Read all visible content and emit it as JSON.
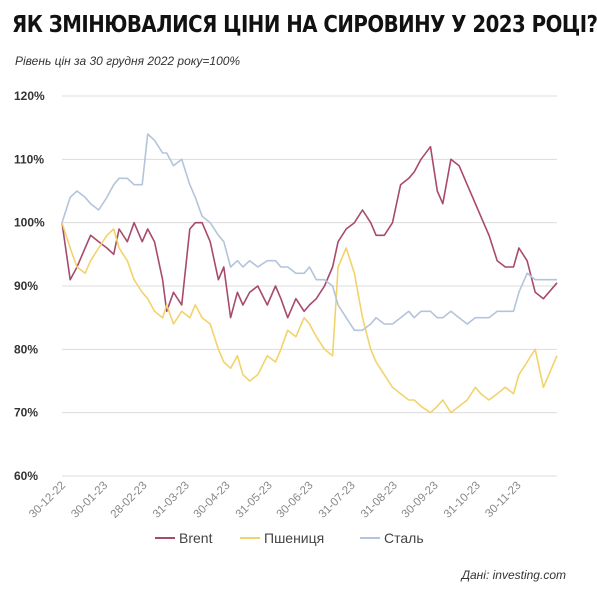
{
  "title": "ЯК ЗМІНЮВАЛИСЯ ЦІНИ НА СИРОВИНУ У 2023 РОЦІ?",
  "subtitle": "Рівень цін за 30 грудня 2022 року=100%",
  "source": "Дані: investing.com",
  "chart_data": {
    "type": "line",
    "ylim": [
      60,
      120
    ],
    "yticks": [
      60,
      70,
      80,
      90,
      100,
      110,
      120
    ],
    "ytick_labels": [
      "60%",
      "70%",
      "80%",
      "90%",
      "100%",
      "110%",
      "120%"
    ],
    "xlim": [
      "2022-12-30",
      "2023-12-29"
    ],
    "xticks": [
      "2022-12-30",
      "2023-01-30",
      "2023-02-28",
      "2023-03-31",
      "2023-04-30",
      "2023-05-31",
      "2023-06-30",
      "2023-07-31",
      "2023-08-31",
      "2023-09-30",
      "2023-10-31",
      "2023-11-30"
    ],
    "xtick_labels": [
      "30-12-22",
      "30-01-23",
      "28-02-23",
      "31-03-23",
      "30-04-23",
      "31-05-23",
      "30-06-23",
      "31-07-23",
      "31-08-23",
      "30-09-23",
      "31-10-23",
      "30-11-23"
    ],
    "grid": "horizontal",
    "legend": "bottom",
    "series": [
      {
        "name": "Brent",
        "color": "#a84a6e",
        "x": [
          "2022-12-30",
          "2023-01-05",
          "2023-01-10",
          "2023-01-16",
          "2023-01-20",
          "2023-01-26",
          "2023-02-01",
          "2023-02-06",
          "2023-02-10",
          "2023-02-16",
          "2023-02-21",
          "2023-02-27",
          "2023-03-03",
          "2023-03-08",
          "2023-03-14",
          "2023-03-17",
          "2023-03-22",
          "2023-03-28",
          "2023-04-03",
          "2023-04-07",
          "2023-04-12",
          "2023-04-18",
          "2023-04-24",
          "2023-04-28",
          "2023-05-03",
          "2023-05-08",
          "2023-05-12",
          "2023-05-17",
          "2023-05-23",
          "2023-05-30",
          "2023-06-05",
          "2023-06-09",
          "2023-06-14",
          "2023-06-20",
          "2023-06-26",
          "2023-06-30",
          "2023-07-05",
          "2023-07-11",
          "2023-07-17",
          "2023-07-21",
          "2023-07-27",
          "2023-08-02",
          "2023-08-08",
          "2023-08-14",
          "2023-08-18",
          "2023-08-24",
          "2023-08-30",
          "2023-09-05",
          "2023-09-11",
          "2023-09-15",
          "2023-09-20",
          "2023-09-27",
          "2023-10-02",
          "2023-10-06",
          "2023-10-12",
          "2023-10-18",
          "2023-10-24",
          "2023-10-30",
          "2023-11-03",
          "2023-11-09",
          "2023-11-15",
          "2023-11-21",
          "2023-11-27",
          "2023-12-01",
          "2023-12-07",
          "2023-12-13",
          "2023-12-19",
          "2023-12-29"
        ],
        "values": [
          100,
          91,
          93,
          96,
          98,
          97,
          96,
          95,
          99,
          97,
          100,
          97,
          99,
          97,
          91,
          86,
          89,
          87,
          99,
          100,
          100,
          97,
          91,
          93,
          85,
          89,
          87,
          89,
          90,
          87,
          90,
          88,
          85,
          88,
          86,
          87,
          88,
          90,
          93,
          97,
          99,
          100,
          102,
          100,
          98,
          98,
          100,
          106,
          107,
          108,
          110,
          112,
          105,
          103,
          110,
          109,
          106,
          103,
          101,
          98,
          94,
          93,
          93,
          96,
          94,
          89,
          88,
          90.5
        ]
      },
      {
        "name": "Пшениця",
        "color": "#f2d36b",
        "x": [
          "2022-12-30",
          "2023-01-05",
          "2023-01-10",
          "2023-01-16",
          "2023-01-20",
          "2023-01-26",
          "2023-02-01",
          "2023-02-06",
          "2023-02-10",
          "2023-02-16",
          "2023-02-21",
          "2023-02-27",
          "2023-03-03",
          "2023-03-08",
          "2023-03-14",
          "2023-03-17",
          "2023-03-22",
          "2023-03-28",
          "2023-04-03",
          "2023-04-07",
          "2023-04-12",
          "2023-04-18",
          "2023-04-24",
          "2023-04-28",
          "2023-05-03",
          "2023-05-08",
          "2023-05-12",
          "2023-05-17",
          "2023-05-23",
          "2023-05-30",
          "2023-06-05",
          "2023-06-09",
          "2023-06-14",
          "2023-06-20",
          "2023-06-26",
          "2023-06-30",
          "2023-07-05",
          "2023-07-11",
          "2023-07-17",
          "2023-07-21",
          "2023-07-27",
          "2023-08-02",
          "2023-08-08",
          "2023-08-14",
          "2023-08-18",
          "2023-08-24",
          "2023-08-30",
          "2023-09-05",
          "2023-09-11",
          "2023-09-15",
          "2023-09-20",
          "2023-09-27",
          "2023-10-02",
          "2023-10-06",
          "2023-10-12",
          "2023-10-18",
          "2023-10-24",
          "2023-10-30",
          "2023-11-03",
          "2023-11-09",
          "2023-11-15",
          "2023-11-21",
          "2023-11-27",
          "2023-12-01",
          "2023-12-07",
          "2023-12-13",
          "2023-12-19",
          "2023-12-29"
        ],
        "values": [
          100,
          96,
          93,
          92,
          94,
          96,
          98,
          99,
          96,
          94,
          91,
          89,
          88,
          86,
          85,
          87,
          84,
          86,
          85,
          87,
          85,
          84,
          80,
          78,
          77,
          79,
          76,
          75,
          76,
          79,
          78,
          80,
          83,
          82,
          85,
          84,
          82,
          80,
          79,
          93,
          96,
          92,
          85,
          80,
          78,
          76,
          74,
          73,
          72,
          72,
          71,
          70,
          71,
          72,
          70,
          71,
          72,
          74,
          73,
          72,
          73,
          74,
          73,
          76,
          78,
          80,
          74,
          79
        ]
      },
      {
        "name": "Сталь",
        "color": "#b3c4db",
        "x": [
          "2022-12-30",
          "2023-01-05",
          "2023-01-10",
          "2023-01-16",
          "2023-01-20",
          "2023-01-26",
          "2023-02-01",
          "2023-02-06",
          "2023-02-10",
          "2023-02-16",
          "2023-02-21",
          "2023-02-27",
          "2023-03-03",
          "2023-03-08",
          "2023-03-14",
          "2023-03-17",
          "2023-03-22",
          "2023-03-28",
          "2023-04-03",
          "2023-04-07",
          "2023-04-12",
          "2023-04-18",
          "2023-04-24",
          "2023-04-28",
          "2023-05-03",
          "2023-05-08",
          "2023-05-12",
          "2023-05-17",
          "2023-05-23",
          "2023-05-30",
          "2023-06-05",
          "2023-06-09",
          "2023-06-14",
          "2023-06-20",
          "2023-06-26",
          "2023-06-30",
          "2023-07-05",
          "2023-07-11",
          "2023-07-17",
          "2023-07-21",
          "2023-07-27",
          "2023-08-02",
          "2023-08-08",
          "2023-08-14",
          "2023-08-18",
          "2023-08-24",
          "2023-08-30",
          "2023-09-05",
          "2023-09-11",
          "2023-09-15",
          "2023-09-20",
          "2023-09-27",
          "2023-10-02",
          "2023-10-06",
          "2023-10-12",
          "2023-10-18",
          "2023-10-24",
          "2023-10-30",
          "2023-11-03",
          "2023-11-09",
          "2023-11-15",
          "2023-11-21",
          "2023-11-27",
          "2023-12-01",
          "2023-12-07",
          "2023-12-13",
          "2023-12-19",
          "2023-12-29"
        ],
        "values": [
          100,
          104,
          105,
          104,
          103,
          102,
          104,
          106,
          107,
          107,
          106,
          106,
          114,
          113,
          111,
          111,
          109,
          110,
          106,
          104,
          101,
          100,
          98,
          97,
          93,
          94,
          93,
          94,
          93,
          94,
          94,
          93,
          93,
          92,
          92,
          93,
          91,
          91,
          90,
          87,
          85,
          83,
          83,
          84,
          85,
          84,
          84,
          85,
          86,
          85,
          86,
          86,
          85,
          85,
          86,
          85,
          84,
          85,
          85,
          85,
          86,
          86,
          86,
          89,
          92,
          91,
          91,
          91
        ]
      }
    ]
  }
}
